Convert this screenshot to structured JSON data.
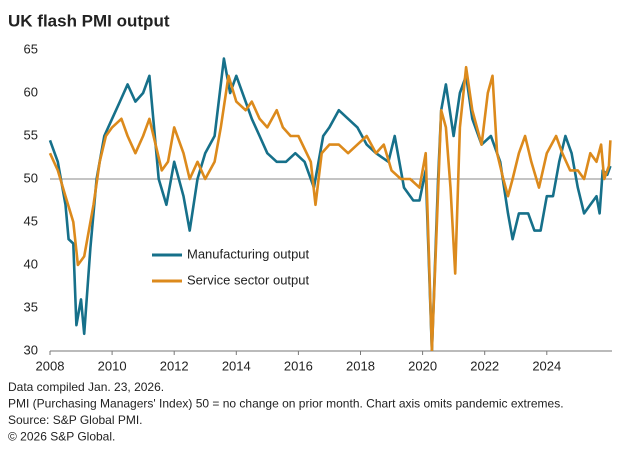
{
  "chart_data": {
    "type": "line",
    "title": "UK flash PMI output",
    "xlim": [
      2008,
      2026.1
    ],
    "xticks": [
      2008,
      2010,
      2012,
      2014,
      2016,
      2018,
      2020,
      2022,
      2024
    ],
    "ylim": [
      30,
      65
    ],
    "yticks": [
      30,
      35,
      40,
      45,
      50,
      55,
      60,
      65
    ],
    "reference_line": 50,
    "legend": "center-left",
    "series": [
      {
        "name": "Manufacturing output",
        "color": "#16708a",
        "x": [
          2008.0,
          2008.25,
          2008.5,
          2008.6,
          2008.75,
          2008.85,
          2009.0,
          2009.1,
          2009.3,
          2009.5,
          2009.75,
          2010.0,
          2010.25,
          2010.5,
          2010.75,
          2011.0,
          2011.2,
          2011.5,
          2011.75,
          2012.0,
          2012.3,
          2012.5,
          2012.75,
          2013.0,
          2013.3,
          2013.6,
          2013.8,
          2014.0,
          2014.3,
          2014.5,
          2014.75,
          2015.0,
          2015.3,
          2015.6,
          2015.9,
          2016.2,
          2016.5,
          2016.8,
          2017.0,
          2017.3,
          2017.6,
          2017.9,
          2018.2,
          2018.5,
          2018.9,
          2019.1,
          2019.4,
          2019.7,
          2019.9,
          2020.1,
          2020.3,
          2020.5,
          2020.6,
          2020.75,
          2021.0,
          2021.2,
          2021.4,
          2021.6,
          2021.9,
          2022.2,
          2022.5,
          2022.75,
          2022.9,
          2023.1,
          2023.4,
          2023.6,
          2023.8,
          2024.0,
          2024.2,
          2024.4,
          2024.6,
          2024.8,
          2025.0,
          2025.2,
          2025.4,
          2025.6,
          2025.7,
          2025.8,
          2025.95,
          2026.05
        ],
        "values": [
          54.5,
          52,
          47,
          43,
          42.5,
          33,
          36,
          32,
          42,
          50,
          55,
          57,
          59,
          61,
          59,
          60,
          62,
          50,
          47,
          52,
          48,
          44,
          50,
          53,
          55,
          64,
          60,
          62,
          59,
          57,
          55,
          53,
          52,
          52,
          53,
          52,
          49,
          55,
          56,
          58,
          57,
          56,
          54,
          53,
          52,
          55,
          49,
          47.5,
          47.5,
          51,
          30,
          50,
          58,
          61,
          55,
          60,
          62,
          57,
          54,
          55,
          52,
          46,
          43,
          46,
          46,
          44,
          44,
          48,
          48,
          52,
          55,
          53,
          49,
          46,
          47,
          48,
          46,
          51,
          50.5,
          51.5
        ]
      },
      {
        "name": "Service sector output",
        "color": "#dc8a1c",
        "x": [
          2008.0,
          2008.25,
          2008.5,
          2008.75,
          2008.9,
          2009.1,
          2009.4,
          2009.6,
          2009.8,
          2010.0,
          2010.3,
          2010.5,
          2010.75,
          2011.0,
          2011.2,
          2011.4,
          2011.6,
          2011.8,
          2012.0,
          2012.3,
          2012.5,
          2012.75,
          2013.0,
          2013.3,
          2013.5,
          2013.75,
          2014.0,
          2014.3,
          2014.5,
          2014.75,
          2015.0,
          2015.3,
          2015.5,
          2015.75,
          2016.0,
          2016.4,
          2016.55,
          2016.75,
          2017.0,
          2017.3,
          2017.6,
          2017.9,
          2018.2,
          2018.5,
          2018.75,
          2019.0,
          2019.3,
          2019.6,
          2019.9,
          2020.1,
          2020.3,
          2020.45,
          2020.6,
          2020.75,
          2020.9,
          2021.05,
          2021.2,
          2021.4,
          2021.6,
          2021.9,
          2022.1,
          2022.25,
          2022.4,
          2022.6,
          2022.75,
          2022.9,
          2023.1,
          2023.3,
          2023.5,
          2023.75,
          2024.0,
          2024.3,
          2024.5,
          2024.75,
          2025.0,
          2025.2,
          2025.4,
          2025.6,
          2025.75,
          2025.85,
          2026.0,
          2026.05
        ],
        "values": [
          53,
          51,
          48,
          45,
          40,
          41,
          47,
          52,
          55,
          56,
          57,
          55,
          53,
          55,
          57,
          54,
          51,
          52,
          56,
          53,
          50,
          52,
          50,
          52,
          56,
          62,
          59,
          58,
          59,
          57,
          56,
          58,
          56,
          55,
          55,
          52,
          47,
          53,
          54,
          54,
          53,
          54,
          55,
          53,
          54,
          51,
          50,
          50,
          49,
          53,
          30,
          44,
          58,
          56,
          49,
          39,
          56,
          63,
          58,
          54,
          60,
          62,
          53,
          50,
          48,
          50,
          53,
          55,
          52,
          49,
          53,
          55,
          53,
          51,
          51,
          50,
          53,
          52,
          54,
          50,
          51.5,
          54.5
        ]
      }
    ],
    "notes": [
      "Data compiled Jan. 23, 2026.",
      "PMI (Purchasing Managers' Index) 50 = no change on prior month. Chart axis omits pandemic extremes.",
      "Source: S&P Global PMI.",
      "© 2026 S&P Global."
    ]
  }
}
